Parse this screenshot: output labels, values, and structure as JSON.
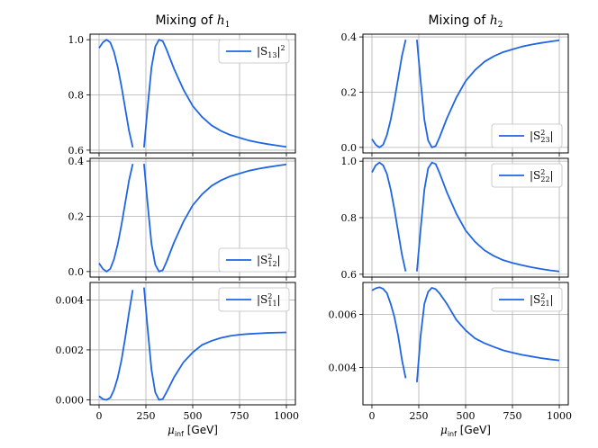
{
  "figure": {
    "line_color": "#1f66e5",
    "grid_color": "#b0b0b0"
  },
  "chart_data": [
    {
      "id": "p0",
      "type": "line",
      "title_text": "Mixing of ",
      "title_symbol": "h",
      "title_sub": "1",
      "legend": {
        "text": "|S",
        "sub": "13",
        "close": "|",
        "sup": "2",
        "position": "top-right"
      },
      "x": [
        0,
        20,
        40,
        60,
        80,
        100,
        120,
        140,
        160,
        180,
        240,
        260,
        280,
        300,
        320,
        340,
        360,
        380,
        400,
        450,
        500,
        550,
        600,
        650,
        700,
        750,
        800,
        850,
        900,
        950,
        1000
      ],
      "series": [
        {
          "name": "|S13|^2",
          "values": [
            0.97,
            0.99,
            1.0,
            0.99,
            0.955,
            0.9,
            0.83,
            0.75,
            0.67,
            0.61,
            0.61,
            0.76,
            0.9,
            0.975,
            1.0,
            0.995,
            0.965,
            0.93,
            0.895,
            0.82,
            0.76,
            0.72,
            0.69,
            0.67,
            0.655,
            0.645,
            0.635,
            0.628,
            0.622,
            0.617,
            0.612
          ]
        }
      ],
      "gap_after_index": 9,
      "ylim": [
        0.59,
        1.02
      ],
      "yticks": [
        0.6,
        0.8,
        1.0
      ],
      "ytick_labels": [
        "0.6",
        "0.8",
        "1.0"
      ],
      "xticks": [
        0,
        250,
        500,
        750,
        1000
      ],
      "xlabel": ""
    },
    {
      "id": "p1",
      "type": "line",
      "title_text": "Mixing of ",
      "title_symbol": "h",
      "title_sub": "2",
      "legend": {
        "text": "|S",
        "sub": "23",
        "sup": "2",
        "close": "|",
        "position": "bottom-right"
      },
      "x": [
        0,
        20,
        40,
        60,
        80,
        100,
        120,
        140,
        160,
        180,
        240,
        260,
        280,
        300,
        320,
        340,
        360,
        380,
        400,
        450,
        500,
        550,
        600,
        650,
        700,
        750,
        800,
        850,
        900,
        950,
        1000
      ],
      "series": [
        {
          "name": "|S23^2|",
          "values": [
            0.03,
            0.01,
            0.0,
            0.01,
            0.045,
            0.1,
            0.17,
            0.25,
            0.33,
            0.39,
            0.39,
            0.24,
            0.1,
            0.025,
            0.0,
            0.005,
            0.035,
            0.07,
            0.105,
            0.18,
            0.24,
            0.28,
            0.31,
            0.33,
            0.345,
            0.355,
            0.365,
            0.372,
            0.378,
            0.383,
            0.388
          ]
        }
      ],
      "gap_after_index": 9,
      "ylim": [
        -0.02,
        0.41
      ],
      "yticks": [
        0.0,
        0.2,
        0.4
      ],
      "ytick_labels": [
        "0.0",
        "0.2",
        "0.4"
      ],
      "xticks": [
        0,
        250,
        500,
        750,
        1000
      ],
      "xlabel": ""
    },
    {
      "id": "p2",
      "type": "line",
      "legend": {
        "text": "|S",
        "sub": "12",
        "sup": "2",
        "close": "|",
        "position": "bottom-right"
      },
      "x": [
        0,
        20,
        40,
        60,
        80,
        100,
        120,
        140,
        160,
        180,
        240,
        260,
        280,
        300,
        320,
        340,
        360,
        380,
        400,
        450,
        500,
        550,
        600,
        650,
        700,
        750,
        800,
        850,
        900,
        950,
        1000
      ],
      "series": [
        {
          "name": "|S12^2|",
          "values": [
            0.03,
            0.01,
            0.0,
            0.01,
            0.045,
            0.1,
            0.17,
            0.25,
            0.33,
            0.39,
            0.39,
            0.24,
            0.1,
            0.025,
            0.0,
            0.005,
            0.035,
            0.07,
            0.105,
            0.18,
            0.24,
            0.28,
            0.31,
            0.33,
            0.345,
            0.355,
            0.365,
            0.372,
            0.378,
            0.383,
            0.388
          ]
        }
      ],
      "gap_after_index": 9,
      "ylim": [
        -0.02,
        0.41
      ],
      "yticks": [
        0.0,
        0.2,
        0.4
      ],
      "ytick_labels": [
        "0.0",
        "0.2",
        "0.4"
      ],
      "xticks": [
        0,
        250,
        500,
        750,
        1000
      ],
      "xlabel": ""
    },
    {
      "id": "p3",
      "type": "line",
      "legend": {
        "text": "|S",
        "sub": "22",
        "sup": "2",
        "close": "|",
        "position": "top-right"
      },
      "x": [
        0,
        20,
        40,
        60,
        80,
        100,
        120,
        140,
        160,
        180,
        240,
        260,
        280,
        300,
        320,
        340,
        360,
        380,
        400,
        450,
        500,
        550,
        600,
        650,
        700,
        750,
        800,
        850,
        900,
        950,
        1000
      ],
      "series": [
        {
          "name": "|S22^2|",
          "values": [
            0.96,
            0.985,
            0.995,
            0.985,
            0.955,
            0.9,
            0.83,
            0.75,
            0.67,
            0.61,
            0.61,
            0.76,
            0.9,
            0.975,
            0.995,
            0.99,
            0.96,
            0.925,
            0.89,
            0.815,
            0.755,
            0.715,
            0.685,
            0.665,
            0.65,
            0.64,
            0.632,
            0.625,
            0.619,
            0.614,
            0.61
          ]
        }
      ],
      "gap_after_index": 9,
      "ylim": [
        0.59,
        1.01
      ],
      "yticks": [
        0.6,
        0.8,
        1.0
      ],
      "ytick_labels": [
        "0.6",
        "0.8",
        "1.0"
      ],
      "xticks": [
        0,
        250,
        500,
        750,
        1000
      ],
      "xlabel": ""
    },
    {
      "id": "p4",
      "type": "line",
      "legend": {
        "text": "|S",
        "sub": "11",
        "sup": "2",
        "close": "|",
        "position": "top-right"
      },
      "x": [
        0,
        20,
        40,
        60,
        80,
        100,
        120,
        140,
        160,
        180,
        240,
        260,
        280,
        300,
        320,
        340,
        360,
        380,
        400,
        450,
        500,
        550,
        600,
        650,
        700,
        750,
        800,
        850,
        900,
        950,
        1000
      ],
      "series": [
        {
          "name": "|S11^2|",
          "values": [
            0.00015,
            3e-05,
            0.0,
            8e-05,
            0.0004,
            0.0009,
            0.0016,
            0.0025,
            0.0035,
            0.0044,
            0.0045,
            0.0028,
            0.0012,
            0.0003,
            0.0,
            3e-05,
            0.0003,
            0.0006,
            0.0009,
            0.0015,
            0.0019,
            0.0022,
            0.00236,
            0.00248,
            0.00256,
            0.00261,
            0.00264,
            0.00266,
            0.00268,
            0.00269,
            0.0027
          ]
        }
      ],
      "gap_after_index": 9,
      "ylim": [
        -0.0002,
        0.0047
      ],
      "yticks": [
        0.0,
        0.002,
        0.004
      ],
      "ytick_labels": [
        "0.000",
        "0.002",
        "0.004"
      ],
      "xticks": [
        0,
        250,
        500,
        750,
        1000
      ],
      "xtick_labels": [
        "0",
        "250",
        "500",
        "750",
        "1000"
      ],
      "xlabel_symbol": "μ",
      "xlabel_sub": "inf",
      "xlabel_unit": " [GeV]"
    },
    {
      "id": "p5",
      "type": "line",
      "legend": {
        "text": "|S",
        "sub": "21",
        "sup": "2",
        "close": "|",
        "position": "top-right"
      },
      "x": [
        0,
        20,
        40,
        60,
        80,
        100,
        120,
        140,
        160,
        180,
        240,
        260,
        280,
        300,
        320,
        340,
        360,
        380,
        400,
        450,
        500,
        550,
        600,
        650,
        700,
        750,
        800,
        850,
        900,
        950,
        1000
      ],
      "series": [
        {
          "name": "|S21^2|",
          "values": [
            0.0069,
            0.00698,
            0.00702,
            0.00696,
            0.0068,
            0.0064,
            0.0059,
            0.0052,
            0.0043,
            0.0036,
            0.00345,
            0.0052,
            0.0064,
            0.00685,
            0.007,
            0.00695,
            0.0068,
            0.0066,
            0.0064,
            0.0058,
            0.0054,
            0.0051,
            0.00492,
            0.00478,
            0.00465,
            0.00456,
            0.00448,
            0.00442,
            0.00436,
            0.00431,
            0.00427
          ]
        }
      ],
      "gap_after_index": 9,
      "ylim": [
        0.0026,
        0.0072
      ],
      "yticks": [
        0.004,
        0.006
      ],
      "ytick_labels": [
        "0.004",
        "0.006"
      ],
      "xticks": [
        0,
        250,
        500,
        750,
        1000
      ],
      "xtick_labels": [
        "0",
        "250",
        "500",
        "750",
        "1000"
      ],
      "xlabel_symbol": "μ",
      "xlabel_sub": "inf",
      "xlabel_unit": " [GeV]"
    }
  ]
}
